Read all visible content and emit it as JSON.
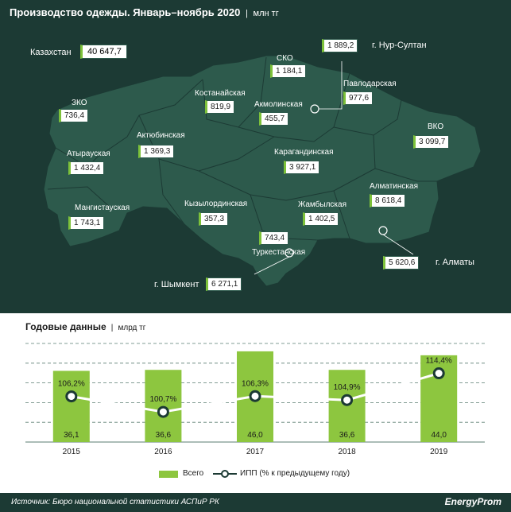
{
  "header": {
    "title": "Производство одежды. Январь–ноябрь 2020",
    "unit": "млн тг"
  },
  "kazakhstan": {
    "label": "Казахстан",
    "value": "40 647,7"
  },
  "regions": [
    {
      "id": "sko",
      "name": "СКО",
      "value": "1 184,1"
    },
    {
      "id": "nur-sultan",
      "name": "г. Нур-Султан",
      "value": "1 889,2"
    },
    {
      "id": "pavlodar",
      "name": "Павлодарская",
      "value": "977,6"
    },
    {
      "id": "kostanay",
      "name": "Костанайская",
      "value": "819,9"
    },
    {
      "id": "akmola",
      "name": "Акмолинская",
      "value": "455,7"
    },
    {
      "id": "zko",
      "name": "ЗКО",
      "value": "736,4"
    },
    {
      "id": "aktobe",
      "name": "Актюбинская",
      "value": "1 369,3"
    },
    {
      "id": "vko",
      "name": "ВКО",
      "value": "3 099,7"
    },
    {
      "id": "atyrau",
      "name": "Атырауская",
      "value": "1 432,4"
    },
    {
      "id": "karaganda",
      "name": "Карагандинская",
      "value": "3 927,1"
    },
    {
      "id": "almaty-region",
      "name": "Алматинская",
      "value": "8 618,4"
    },
    {
      "id": "mangistau",
      "name": "Мангистауская",
      "value": "1 743,1"
    },
    {
      "id": "kyzylorda",
      "name": "Кызылординская",
      "value": "357,3"
    },
    {
      "id": "zhambyl",
      "name": "Жамбылская",
      "value": "1 402,5"
    },
    {
      "id": "turkestan",
      "name": "Туркестанская",
      "value": "743,4"
    },
    {
      "id": "almaty-city",
      "name": "г. Алматы",
      "value": "5 620,6"
    },
    {
      "id": "shymkent",
      "name": "г. Шымкент",
      "value": "6 271,1"
    }
  ],
  "annual": {
    "title": "Годовые данные",
    "unit": "млрд тг"
  },
  "chart_data": {
    "type": "bar",
    "categories": [
      "2015",
      "2016",
      "2017",
      "2018",
      "2019"
    ],
    "series": [
      {
        "name": "Всего",
        "type": "bar",
        "values": [
          36.1,
          36.6,
          46.0,
          36.6,
          44.0
        ],
        "labels": [
          "36,1",
          "36,6",
          "46,0",
          "36,6",
          "44,0"
        ],
        "color": "#8dc63f"
      },
      {
        "name": "ИПП (% к предыдущему году)",
        "type": "line",
        "values": [
          106.2,
          100.7,
          106.3,
          104.9,
          114.4
        ],
        "labels": [
          "106,2%",
          "100,7%",
          "106,3%",
          "104,9%",
          "114,4%"
        ],
        "color": "#ffffff"
      }
    ],
    "ylim": [
      0,
      50
    ],
    "grid": true,
    "legend": "bottom"
  },
  "footer": {
    "source": "Источник: Бюро национальной статистики АСПиР РК",
    "logo": "EnergyProm"
  },
  "colors": {
    "dark": "#1c3a34",
    "map": "#2d5a4c",
    "accent": "#8dc63f"
  }
}
